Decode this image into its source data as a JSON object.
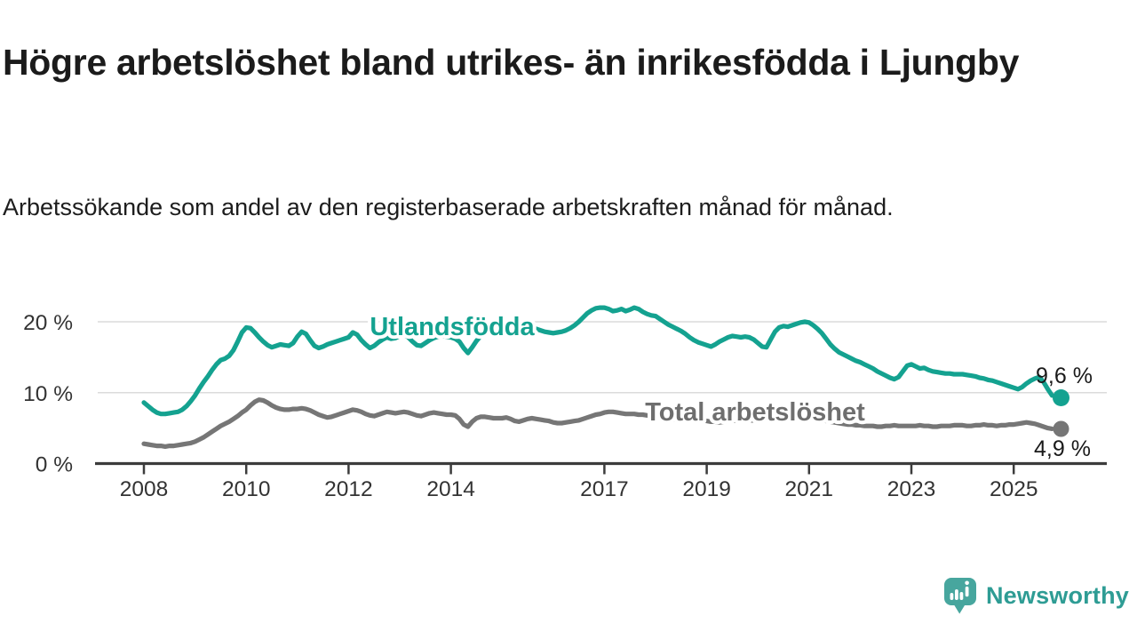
{
  "header": {
    "title": "Högre arbetslöshet bland utrikes- än inrikesfödda i Ljungby",
    "subtitle": "Arbetssökande som andel av den registerbaserade arbetskraften månad för månad."
  },
  "chart_data": {
    "type": "line",
    "unit": "%",
    "grid": "horizontal-only",
    "x_start_year": 2008,
    "points_per_month": 1,
    "x_tick_years": [
      2008,
      2010,
      2012,
      2014,
      2017,
      2019,
      2021,
      2023,
      2025
    ],
    "y_ticks": [
      {
        "value": 0,
        "label": "0 %"
      },
      {
        "value": 10,
        "label": "10 %"
      },
      {
        "value": 20,
        "label": "20 %"
      }
    ],
    "ylim": [
      0,
      23
    ],
    "series": [
      {
        "name": "Utlandsfödda",
        "color": "#14A290",
        "label_color": "#14A290",
        "end_label": "9,6 %",
        "end_value": 9.6,
        "values": [
          8.6,
          8.1,
          7.6,
          7.2,
          7.0,
          7.0,
          7.1,
          7.2,
          7.3,
          7.6,
          8.1,
          8.8,
          9.6,
          10.6,
          11.5,
          12.3,
          13.2,
          14.0,
          14.6,
          14.8,
          15.2,
          16.0,
          17.2,
          18.5,
          19.2,
          19.1,
          18.5,
          17.8,
          17.2,
          16.7,
          16.4,
          16.6,
          16.8,
          16.7,
          16.6,
          17.0,
          17.9,
          18.6,
          18.3,
          17.4,
          16.6,
          16.3,
          16.5,
          16.8,
          17.0,
          17.2,
          17.4,
          17.6,
          17.8,
          18.5,
          18.2,
          17.4,
          16.8,
          16.3,
          16.6,
          17.1,
          17.5,
          17.8,
          17.6,
          17.7,
          18.0,
          18.2,
          17.8,
          17.2,
          16.7,
          16.6,
          17.0,
          17.4,
          17.7,
          17.9,
          18.0,
          17.9,
          17.8,
          17.6,
          17.2,
          16.3,
          15.6,
          16.4,
          17.3,
          18.0,
          18.6,
          19.0,
          19.2,
          19.3,
          19.4,
          19.3,
          19.2,
          19.3,
          19.4,
          19.4,
          19.3,
          19.2,
          19.0,
          18.8,
          18.6,
          18.5,
          18.4,
          18.5,
          18.6,
          18.8,
          19.1,
          19.5,
          20.0,
          20.6,
          21.2,
          21.6,
          21.9,
          22.0,
          22.0,
          21.8,
          21.5,
          21.6,
          21.8,
          21.5,
          21.7,
          22.0,
          21.8,
          21.4,
          21.1,
          20.9,
          20.8,
          20.4,
          20.0,
          19.6,
          19.3,
          19.0,
          18.7,
          18.3,
          17.8,
          17.4,
          17.1,
          16.9,
          16.7,
          16.5,
          16.8,
          17.2,
          17.5,
          17.8,
          18.0,
          17.9,
          17.8,
          17.9,
          17.8,
          17.5,
          17.0,
          16.5,
          16.4,
          17.5,
          18.6,
          19.2,
          19.4,
          19.3,
          19.5,
          19.7,
          19.9,
          20.0,
          19.9,
          19.5,
          19.0,
          18.4,
          17.6,
          16.8,
          16.2,
          15.7,
          15.4,
          15.1,
          14.8,
          14.5,
          14.3,
          14.0,
          13.7,
          13.4,
          13.0,
          12.7,
          12.4,
          12.1,
          11.9,
          12.2,
          13.0,
          13.8,
          14.0,
          13.7,
          13.4,
          13.5,
          13.2,
          13.0,
          12.9,
          12.8,
          12.7,
          12.7,
          12.6,
          12.6,
          12.6,
          12.5,
          12.4,
          12.3,
          12.1,
          12.0,
          11.8,
          11.7,
          11.5,
          11.3,
          11.1,
          10.9,
          10.7,
          10.5,
          10.8,
          11.3,
          11.7,
          12.0,
          12.2,
          11.5,
          10.5,
          9.6
        ]
      },
      {
        "name": "Total arbetslöshet",
        "color": "#767676",
        "label_color": "#6E6E6E",
        "end_label": "4,9 %",
        "end_value": 4.9,
        "values": [
          2.8,
          2.7,
          2.6,
          2.5,
          2.5,
          2.4,
          2.5,
          2.5,
          2.6,
          2.7,
          2.8,
          2.9,
          3.1,
          3.4,
          3.7,
          4.1,
          4.5,
          4.9,
          5.3,
          5.6,
          5.9,
          6.3,
          6.7,
          7.2,
          7.6,
          8.2,
          8.7,
          9.0,
          8.9,
          8.6,
          8.2,
          7.9,
          7.7,
          7.6,
          7.6,
          7.7,
          7.7,
          7.8,
          7.7,
          7.5,
          7.2,
          6.9,
          6.7,
          6.5,
          6.6,
          6.8,
          7.0,
          7.2,
          7.4,
          7.6,
          7.5,
          7.3,
          7.0,
          6.8,
          6.7,
          6.9,
          7.1,
          7.3,
          7.2,
          7.1,
          7.2,
          7.3,
          7.2,
          7.0,
          6.8,
          6.7,
          6.9,
          7.1,
          7.2,
          7.1,
          7.0,
          6.9,
          6.9,
          6.8,
          6.3,
          5.5,
          5.2,
          5.9,
          6.4,
          6.6,
          6.6,
          6.5,
          6.4,
          6.4,
          6.4,
          6.5,
          6.3,
          6.0,
          5.9,
          6.1,
          6.3,
          6.4,
          6.3,
          6.2,
          6.1,
          6.0,
          5.8,
          5.7,
          5.7,
          5.8,
          5.9,
          6.0,
          6.1,
          6.3,
          6.5,
          6.7,
          6.9,
          7.0,
          7.2,
          7.3,
          7.3,
          7.2,
          7.1,
          7.0,
          7.0,
          7.0,
          6.9,
          6.9,
          6.8,
          6.8,
          6.7,
          6.6,
          6.5,
          6.4,
          6.3,
          6.2,
          6.2,
          6.1,
          6.1,
          6.0,
          6.0,
          6.1,
          6.0,
          5.9,
          5.9,
          5.8,
          5.9,
          6.0,
          6.0,
          6.1,
          6.0,
          6.0,
          6.1,
          6.1,
          6.2,
          6.1,
          6.3,
          6.8,
          7.2,
          7.4,
          7.3,
          7.2,
          7.1,
          7.0,
          6.9,
          6.8,
          6.7,
          6.5,
          6.3,
          6.1,
          6.0,
          5.9,
          5.8,
          5.7,
          5.6,
          5.5,
          5.5,
          5.4,
          5.4,
          5.3,
          5.3,
          5.3,
          5.2,
          5.2,
          5.3,
          5.3,
          5.4,
          5.3,
          5.3,
          5.3,
          5.3,
          5.3,
          5.4,
          5.3,
          5.3,
          5.2,
          5.2,
          5.3,
          5.3,
          5.3,
          5.4,
          5.4,
          5.4,
          5.3,
          5.3,
          5.4,
          5.4,
          5.5,
          5.4,
          5.4,
          5.3,
          5.4,
          5.4,
          5.5,
          5.5,
          5.6,
          5.7,
          5.8,
          5.7,
          5.6,
          5.4,
          5.2,
          5.0,
          4.9
        ]
      }
    ]
  },
  "footer": {
    "brand": "Newsworthy"
  },
  "colors": {
    "accent_teal": "#14A290",
    "logo_bubble": "#47A69E",
    "brand_text": "#2E9C94",
    "axis": "#3C3C3C",
    "grid": "#DBDBDB",
    "text_dark": "#1A1A1A",
    "tick_text": "#333333"
  }
}
